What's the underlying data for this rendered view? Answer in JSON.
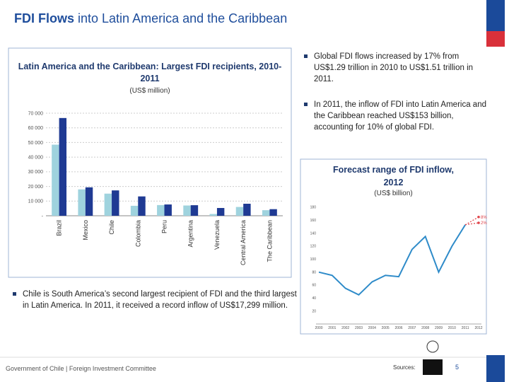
{
  "slide": {
    "title": {
      "bold": "FDI Flows",
      "rest": "into Latin America and the Caribbean"
    },
    "bullets_right": [
      "Global FDI flows increased by 17% from US$1.29 trillion in 2010 to US$1.51 trillion in 2011.",
      "In 2011, the inflow of FDI into Latin America and the Caribbean reached US$153 billion, accounting for 10% of global FDI."
    ],
    "bullet_left": "Chile is South America’s second largest recipient of FDI and the third largest in Latin America. In 2011, it received a record inflow of US$17,299 million.",
    "footer": "Government of Chile | Foreign Investment Committee",
    "sources": "Sources:",
    "page_number": "5"
  },
  "chart_data": [
    {
      "type": "bar",
      "title": "Latin America and the Caribbean: Largest FDI recipients, 2010-2011",
      "subtitle": "(US$ million)",
      "categories": [
        "Brazil",
        "Mexico",
        "Chile",
        "Colombia",
        "Peru",
        "Argentina",
        "Venezuela",
        "Central America",
        "The Caribbean"
      ],
      "series": [
        {
          "color": "#9fd3de",
          "values": [
            48500,
            18000,
            15100,
            6800,
            7300,
            7000,
            1200,
            6000,
            3800
          ]
        },
        {
          "color": "#1f3a93",
          "values": [
            66700,
            19400,
            17300,
            13200,
            7700,
            7200,
            5300,
            8200,
            4500
          ]
        }
      ],
      "ylim": [
        0,
        70000
      ],
      "yticks": [
        {
          "value": 0,
          "label": "-"
        },
        {
          "value": 10000,
          "label": "10 000"
        },
        {
          "value": 20000,
          "label": "20 000"
        },
        {
          "value": 30000,
          "label": "30 000"
        },
        {
          "value": 40000,
          "label": "40 000"
        },
        {
          "value": 50000,
          "label": "50 000"
        },
        {
          "value": 60000,
          "label": "60 000"
        },
        {
          "value": 70000,
          "label": "70 000"
        }
      ],
      "grid": true
    },
    {
      "type": "line",
      "title": "Forecast range of FDI inflow, 2012",
      "subtitle": "(US$ billion)",
      "categories": [
        "2000",
        "2001",
        "2002",
        "2003",
        "2004",
        "2005",
        "2006",
        "2007",
        "2008",
        "2009",
        "2010",
        "2011",
        "2012"
      ],
      "series": [
        {
          "color": "#2e8bc9",
          "style": "solid",
          "values": [
            80,
            75,
            55,
            45,
            65,
            75,
            73,
            115,
            135,
            80,
            120,
            153,
            null
          ]
        },
        {
          "name": "8%",
          "color": "#e0444a",
          "style": "dotted",
          "values": [
            null,
            null,
            null,
            null,
            null,
            null,
            null,
            null,
            null,
            null,
            null,
            153,
            165
          ]
        },
        {
          "name": "2%",
          "color": "#e0444a",
          "style": "dotted",
          "values": [
            null,
            null,
            null,
            null,
            null,
            null,
            null,
            null,
            null,
            null,
            null,
            153,
            156
          ]
        }
      ],
      "ylim": [
        0,
        180
      ],
      "yticks": [
        20,
        40,
        60,
        80,
        100,
        120,
        140,
        160,
        180
      ],
      "grid": false
    }
  ]
}
